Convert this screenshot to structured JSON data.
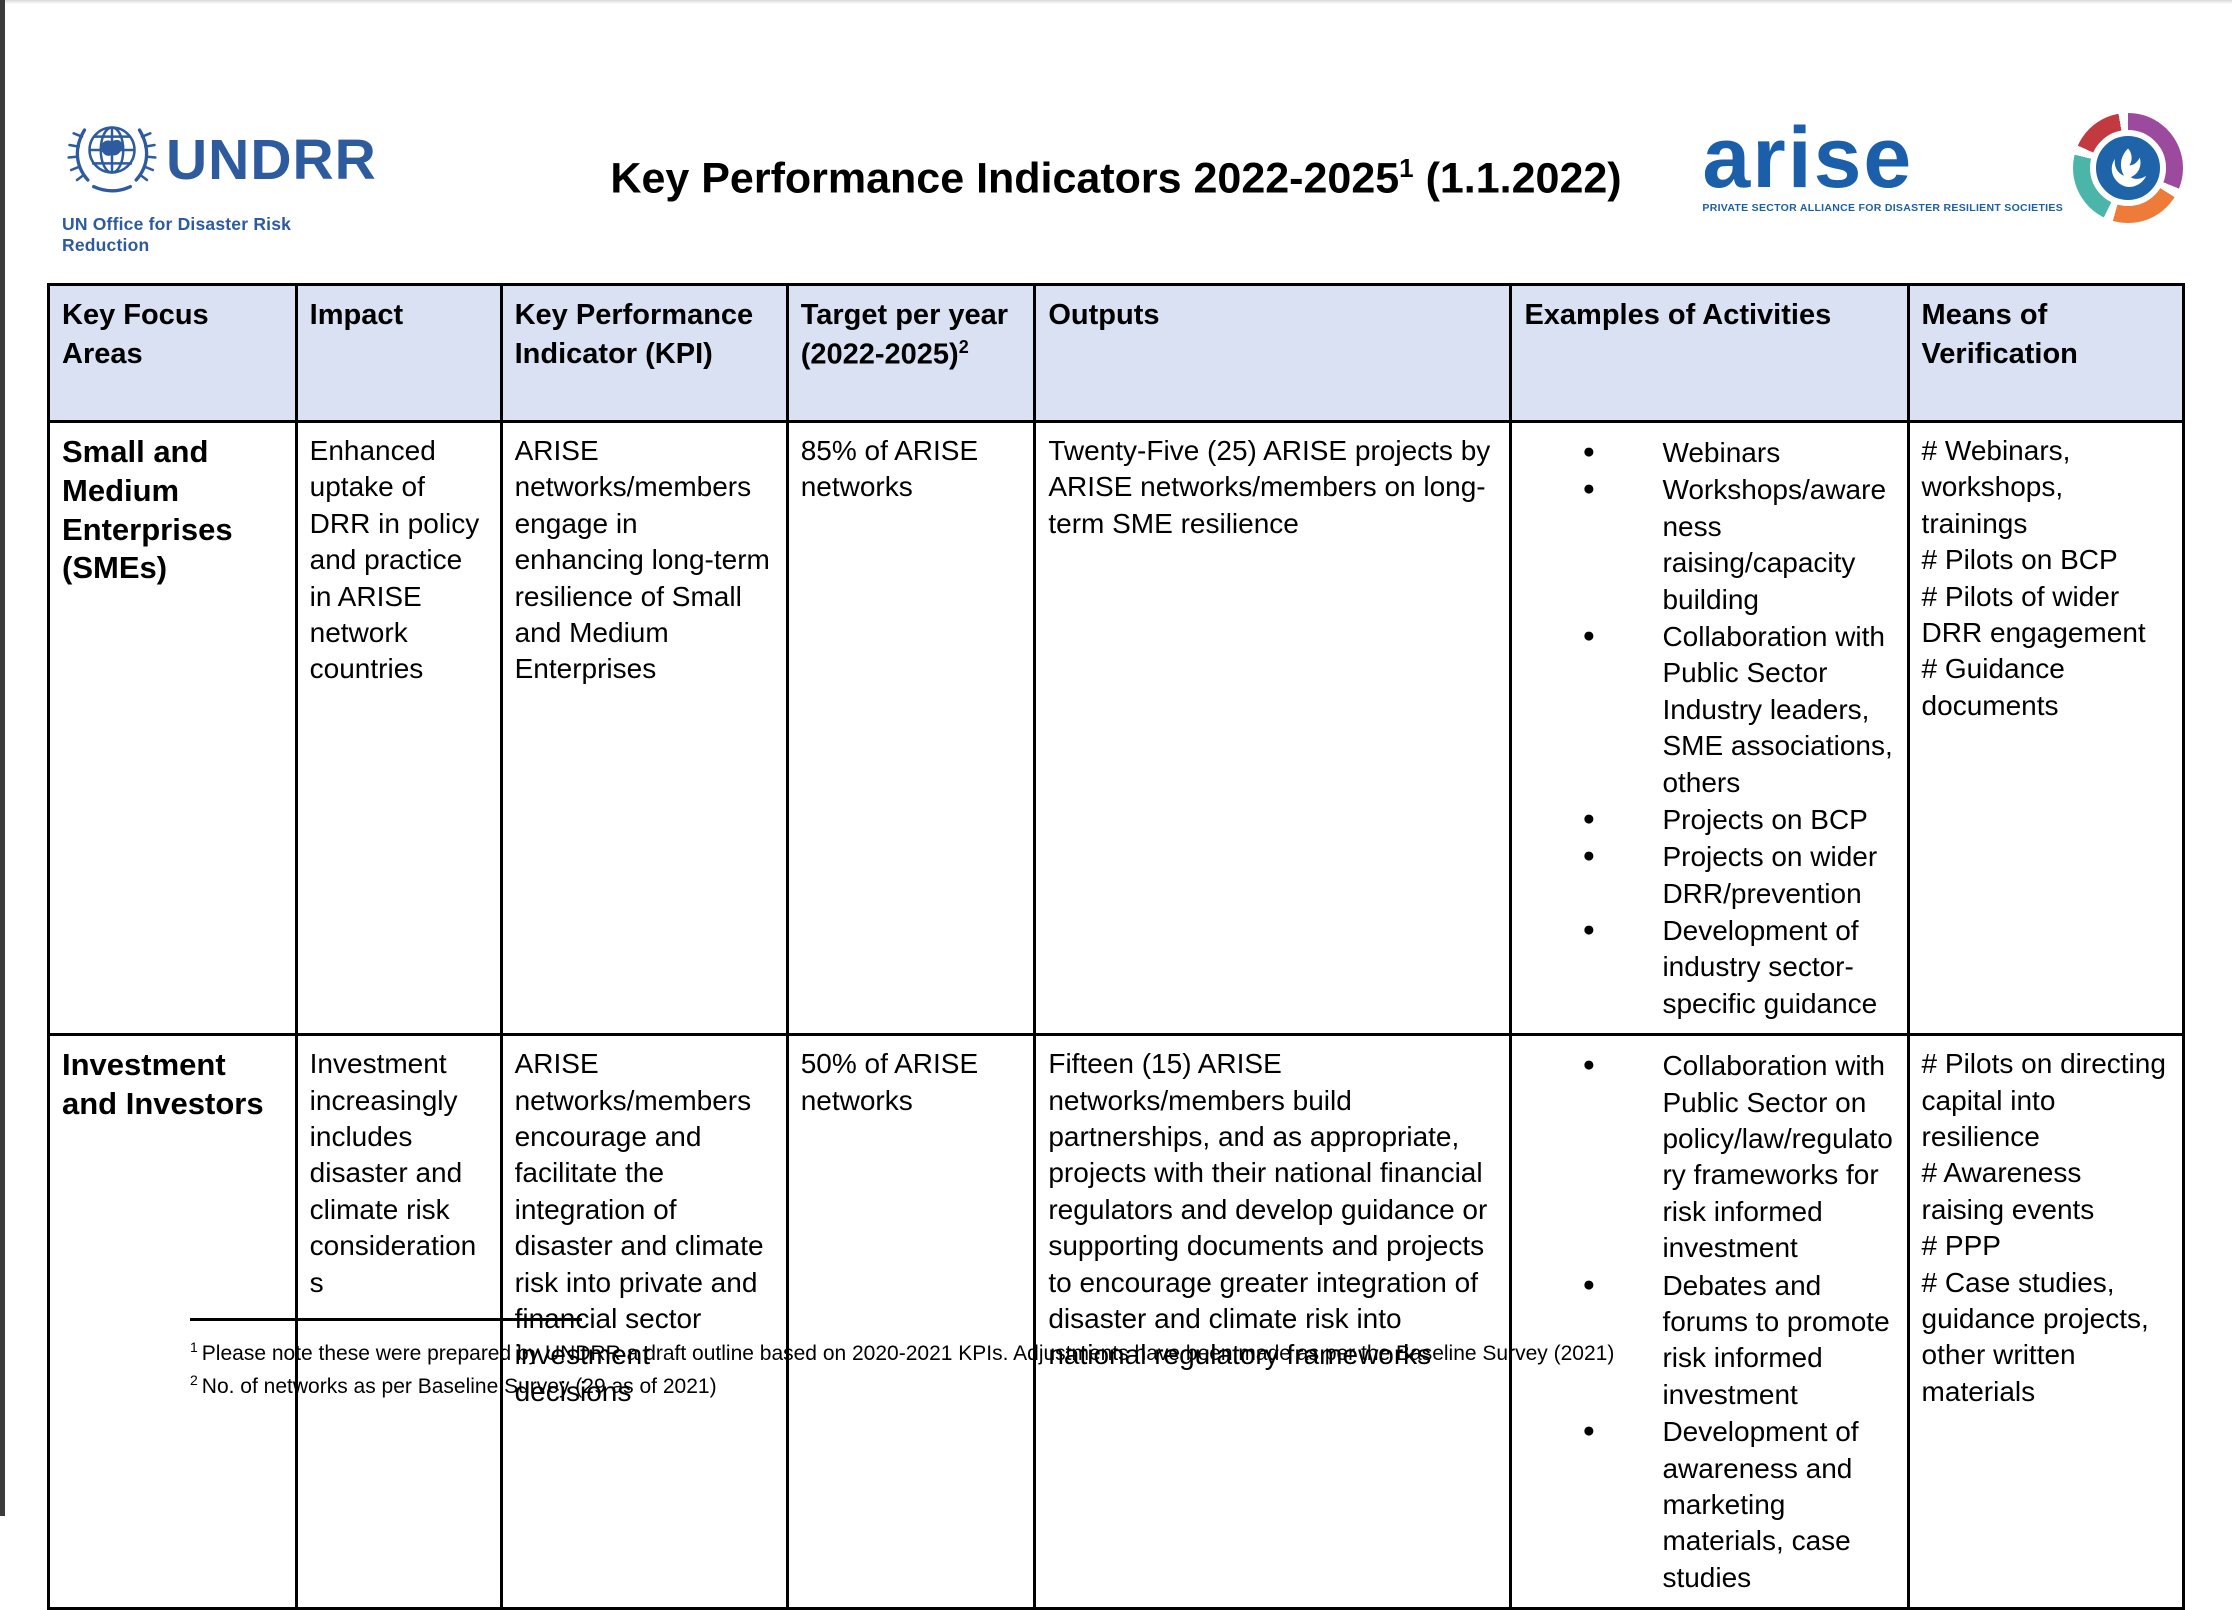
{
  "title": {
    "main": "Key Performance Indicators 2022-2025",
    "sup": "1",
    "suffix": " (1.1.2022)"
  },
  "logos": {
    "undrr": {
      "name": "UNDRR",
      "subtitle": "UN Office for Disaster Risk Reduction"
    },
    "arise": {
      "name": "arise",
      "tagline": "PRIVATE SECTOR ALLIANCE FOR DISASTER RESILIENT SOCIETIES"
    }
  },
  "table": {
    "columns": [
      "Key Focus Areas",
      "Impact",
      "Key Performance Indicator (KPI)",
      "Target per year (2022-2025)",
      "Outputs",
      "Examples of Activities",
      "Means of Verification"
    ],
    "target_sup": "2",
    "rows": [
      {
        "focus_area": "Small and Medium Enterprises (SMEs)",
        "impact": "Enhanced uptake of DRR in policy and practice in ARISE network countries",
        "kpi": "ARISE networks/members engage in enhancing long-term resilience of Small and Medium Enterprises",
        "target": "85% of ARISE networks",
        "outputs": "Twenty-Five (25) ARISE projects by ARISE networks/members on long-term SME resilience",
        "activities": [
          "Webinars",
          "Workshops/awareness raising/capacity building",
          "Collaboration with Public Sector Industry leaders, SME associations, others",
          "Projects on BCP",
          "Projects on wider DRR/prevention",
          "Development of industry sector-specific guidance"
        ],
        "verification": [
          "# Webinars, workshops, trainings",
          "# Pilots on BCP",
          "# Pilots of wider DRR engagement",
          "# Guidance documents"
        ]
      },
      {
        "focus_area": "Investment and Investors",
        "impact": "Investment increasingly includes disaster and climate risk considerations",
        "kpi": "ARISE networks/members encourage and facilitate the integration of disaster and climate risk into private and financial sector investment decisions",
        "target": "50% of ARISE networks",
        "outputs": "Fifteen (15) ARISE networks/members build partnerships, and as appropriate, projects with their national financial regulators and develop guidance or supporting documents and projects to encourage greater integration of disaster and climate risk into national regulatory frameworks",
        "activities": [
          "Collaboration with Public Sector on policy/law/regulatory frameworks for risk informed investment",
          "Debates and forums to promote risk informed investment",
          "Development of awareness and marketing materials, case studies"
        ],
        "verification": [
          "#  Pilots on directing capital into resilience",
          "# Awareness raising events",
          "# PPP",
          "# Case studies, guidance projects, other written materials"
        ]
      }
    ]
  },
  "footnotes": [
    {
      "sup": "1",
      "text": "Please note these were prepared by UNDRR a draft outline based on 2020-2021 KPIs. Adjustments have been made as per the Baseline Survey (2021)"
    },
    {
      "sup": "2",
      "text": "No. of networks as per Baseline Survey (29 as of 2021)"
    }
  ],
  "colors": {
    "header_fill": "#dae1f3",
    "table_border": "#000000",
    "undrr_blue": "#2d5b9e",
    "arise_blue": "#1b5fab",
    "ring_red": "#c23a40",
    "ring_purple": "#9c4a9e",
    "ring_orange": "#ee7b39",
    "ring_teal": "#4ab5a8",
    "phoenix_blue": "#1f63a8"
  }
}
